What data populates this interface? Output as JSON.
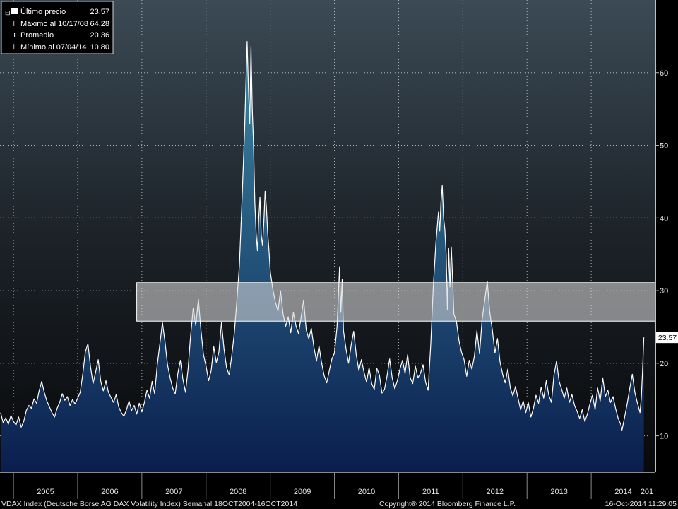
{
  "chart_data": {
    "type": "area",
    "x_ticks": [
      "2005",
      "2006",
      "2007",
      "2008",
      "2009",
      "2010",
      "2011",
      "2012",
      "2013",
      "2014",
      "201"
    ],
    "y_ticks": [
      10,
      20,
      30,
      40,
      50,
      60
    ],
    "ylim": [
      5,
      70
    ],
    "xlim": [
      2004.79,
      2015.1
    ],
    "grid": true,
    "series": [
      {
        "points": [
          [
            2004.8,
            13.2
          ],
          [
            2004.84,
            11.8
          ],
          [
            2004.88,
            12.5
          ],
          [
            2004.92,
            11.6
          ],
          [
            2004.96,
            12.8
          ],
          [
            2005.0,
            12.0
          ],
          [
            2005.04,
            11.5
          ],
          [
            2005.08,
            12.6
          ],
          [
            2005.12,
            11.2
          ],
          [
            2005.16,
            12.0
          ],
          [
            2005.2,
            13.5
          ],
          [
            2005.24,
            14.2
          ],
          [
            2005.28,
            13.8
          ],
          [
            2005.32,
            15.1
          ],
          [
            2005.36,
            14.5
          ],
          [
            2005.4,
            16.2
          ],
          [
            2005.44,
            17.5
          ],
          [
            2005.48,
            16.0
          ],
          [
            2005.52,
            14.8
          ],
          [
            2005.56,
            14.0
          ],
          [
            2005.6,
            13.2
          ],
          [
            2005.64,
            12.6
          ],
          [
            2005.68,
            13.8
          ],
          [
            2005.72,
            14.6
          ],
          [
            2005.76,
            15.8
          ],
          [
            2005.8,
            14.9
          ],
          [
            2005.84,
            15.4
          ],
          [
            2005.88,
            14.2
          ],
          [
            2005.92,
            15.0
          ],
          [
            2005.96,
            14.4
          ],
          [
            2006.0,
            15.2
          ],
          [
            2006.04,
            16.0
          ],
          [
            2006.08,
            18.5
          ],
          [
            2006.12,
            21.6
          ],
          [
            2006.16,
            22.7
          ],
          [
            2006.2,
            19.5
          ],
          [
            2006.24,
            17.2
          ],
          [
            2006.28,
            18.8
          ],
          [
            2006.32,
            20.5
          ],
          [
            2006.36,
            17.5
          ],
          [
            2006.4,
            16.2
          ],
          [
            2006.44,
            17.6
          ],
          [
            2006.48,
            16.0
          ],
          [
            2006.52,
            15.3
          ],
          [
            2006.56,
            14.6
          ],
          [
            2006.6,
            15.7
          ],
          [
            2006.64,
            14.0
          ],
          [
            2006.68,
            13.2
          ],
          [
            2006.72,
            12.7
          ],
          [
            2006.76,
            13.6
          ],
          [
            2006.8,
            14.8
          ],
          [
            2006.84,
            13.5
          ],
          [
            2006.88,
            14.2
          ],
          [
            2006.92,
            13.0
          ],
          [
            2006.96,
            14.5
          ],
          [
            2007.0,
            13.3
          ],
          [
            2007.04,
            14.6
          ],
          [
            2007.08,
            16.3
          ],
          [
            2007.12,
            15.2
          ],
          [
            2007.16,
            17.5
          ],
          [
            2007.2,
            15.8
          ],
          [
            2007.24,
            19.8
          ],
          [
            2007.28,
            22.6
          ],
          [
            2007.32,
            25.6
          ],
          [
            2007.36,
            23.0
          ],
          [
            2007.4,
            19.8
          ],
          [
            2007.44,
            18.0
          ],
          [
            2007.48,
            16.6
          ],
          [
            2007.52,
            15.8
          ],
          [
            2007.56,
            18.6
          ],
          [
            2007.6,
            20.4
          ],
          [
            2007.64,
            17.8
          ],
          [
            2007.68,
            16.0
          ],
          [
            2007.72,
            19.2
          ],
          [
            2007.76,
            23.8
          ],
          [
            2007.8,
            27.6
          ],
          [
            2007.84,
            25.2
          ],
          [
            2007.88,
            28.8
          ],
          [
            2007.92,
            24.6
          ],
          [
            2007.96,
            21.2
          ],
          [
            2008.0,
            19.6
          ],
          [
            2008.04,
            17.6
          ],
          [
            2008.08,
            19.0
          ],
          [
            2008.12,
            22.3
          ],
          [
            2008.16,
            20.1
          ],
          [
            2008.2,
            21.5
          ],
          [
            2008.24,
            25.6
          ],
          [
            2008.28,
            22.0
          ],
          [
            2008.32,
            19.4
          ],
          [
            2008.36,
            18.4
          ],
          [
            2008.4,
            21.0
          ],
          [
            2008.44,
            24.2
          ],
          [
            2008.48,
            28.6
          ],
          [
            2008.52,
            33.5
          ],
          [
            2008.56,
            42.5
          ],
          [
            2008.6,
            52.0
          ],
          [
            2008.64,
            64.3
          ],
          [
            2008.66,
            58.0
          ],
          [
            2008.68,
            53.0
          ],
          [
            2008.7,
            63.6
          ],
          [
            2008.72,
            55.0
          ],
          [
            2008.74,
            50.0
          ],
          [
            2008.76,
            42.2
          ],
          [
            2008.78,
            37.8
          ],
          [
            2008.8,
            35.5
          ],
          [
            2008.82,
            39.8
          ],
          [
            2008.84,
            42.9
          ],
          [
            2008.86,
            37.6
          ],
          [
            2008.88,
            36.2
          ],
          [
            2008.9,
            39.5
          ],
          [
            2008.92,
            43.7
          ],
          [
            2008.94,
            41.5
          ],
          [
            2008.96,
            38.0
          ],
          [
            2008.98,
            35.6
          ],
          [
            2009.0,
            32.6
          ],
          [
            2009.04,
            30.2
          ],
          [
            2009.08,
            28.4
          ],
          [
            2009.12,
            27.2
          ],
          [
            2009.16,
            30.0
          ],
          [
            2009.2,
            26.8
          ],
          [
            2009.24,
            25.1
          ],
          [
            2009.28,
            26.4
          ],
          [
            2009.32,
            24.2
          ],
          [
            2009.36,
            27.0
          ],
          [
            2009.4,
            25.2
          ],
          [
            2009.44,
            24.1
          ],
          [
            2009.48,
            26.3
          ],
          [
            2009.52,
            28.7
          ],
          [
            2009.56,
            24.6
          ],
          [
            2009.6,
            23.4
          ],
          [
            2009.64,
            24.8
          ],
          [
            2009.68,
            22.2
          ],
          [
            2009.72,
            20.3
          ],
          [
            2009.76,
            22.4
          ],
          [
            2009.8,
            20.0
          ],
          [
            2009.84,
            18.3
          ],
          [
            2009.88,
            17.3
          ],
          [
            2009.92,
            19.0
          ],
          [
            2009.96,
            20.6
          ],
          [
            2010.0,
            21.4
          ],
          [
            2010.04,
            25.0
          ],
          [
            2010.08,
            33.3
          ],
          [
            2010.1,
            27.0
          ],
          [
            2010.12,
            31.6
          ],
          [
            2010.14,
            24.5
          ],
          [
            2010.18,
            22.0
          ],
          [
            2010.22,
            20.0
          ],
          [
            2010.26,
            22.5
          ],
          [
            2010.3,
            24.4
          ],
          [
            2010.34,
            21.2
          ],
          [
            2010.38,
            19.0
          ],
          [
            2010.42,
            20.5
          ],
          [
            2010.46,
            18.8
          ],
          [
            2010.5,
            17.4
          ],
          [
            2010.54,
            19.4
          ],
          [
            2010.58,
            17.2
          ],
          [
            2010.62,
            16.4
          ],
          [
            2010.66,
            19.3
          ],
          [
            2010.7,
            18.4
          ],
          [
            2010.74,
            15.9
          ],
          [
            2010.78,
            16.4
          ],
          [
            2010.82,
            18.3
          ],
          [
            2010.86,
            20.6
          ],
          [
            2010.9,
            18.0
          ],
          [
            2010.94,
            16.5
          ],
          [
            2010.98,
            17.6
          ],
          [
            2011.02,
            19.2
          ],
          [
            2011.06,
            20.4
          ],
          [
            2011.1,
            18.6
          ],
          [
            2011.14,
            21.2
          ],
          [
            2011.18,
            18.0
          ],
          [
            2011.22,
            17.2
          ],
          [
            2011.26,
            19.6
          ],
          [
            2011.3,
            18.0
          ],
          [
            2011.34,
            18.6
          ],
          [
            2011.38,
            19.8
          ],
          [
            2011.42,
            17.4
          ],
          [
            2011.46,
            16.3
          ],
          [
            2011.5,
            22.6
          ],
          [
            2011.54,
            30.5
          ],
          [
            2011.58,
            36.6
          ],
          [
            2011.62,
            40.8
          ],
          [
            2011.64,
            38.2
          ],
          [
            2011.66,
            42.2
          ],
          [
            2011.68,
            44.5
          ],
          [
            2011.7,
            40.0
          ],
          [
            2011.72,
            38.4
          ],
          [
            2011.74,
            35.0
          ],
          [
            2011.76,
            27.4
          ],
          [
            2011.78,
            35.8
          ],
          [
            2011.8,
            30.5
          ],
          [
            2011.82,
            36.0
          ],
          [
            2011.84,
            31.8
          ],
          [
            2011.86,
            26.8
          ],
          [
            2011.9,
            25.8
          ],
          [
            2011.94,
            23.1
          ],
          [
            2011.98,
            21.5
          ],
          [
            2012.02,
            20.5
          ],
          [
            2012.06,
            18.2
          ],
          [
            2012.1,
            20.4
          ],
          [
            2012.14,
            19.2
          ],
          [
            2012.18,
            21.0
          ],
          [
            2012.22,
            24.5
          ],
          [
            2012.26,
            21.3
          ],
          [
            2012.3,
            26.0
          ],
          [
            2012.34,
            28.6
          ],
          [
            2012.38,
            31.3
          ],
          [
            2012.42,
            27.0
          ],
          [
            2012.46,
            24.6
          ],
          [
            2012.5,
            21.4
          ],
          [
            2012.54,
            23.4
          ],
          [
            2012.58,
            20.2
          ],
          [
            2012.62,
            18.5
          ],
          [
            2012.66,
            17.3
          ],
          [
            2012.7,
            19.2
          ],
          [
            2012.74,
            16.6
          ],
          [
            2012.78,
            15.5
          ],
          [
            2012.82,
            16.8
          ],
          [
            2012.86,
            15.2
          ],
          [
            2012.9,
            13.6
          ],
          [
            2012.94,
            14.8
          ],
          [
            2012.98,
            13.2
          ],
          [
            2013.02,
            14.6
          ],
          [
            2013.06,
            12.6
          ],
          [
            2013.1,
            13.8
          ],
          [
            2013.14,
            15.6
          ],
          [
            2013.18,
            14.5
          ],
          [
            2013.22,
            16.7
          ],
          [
            2013.26,
            15.2
          ],
          [
            2013.3,
            17.6
          ],
          [
            2013.34,
            15.6
          ],
          [
            2013.38,
            14.6
          ],
          [
            2013.42,
            18.4
          ],
          [
            2013.46,
            20.3
          ],
          [
            2013.5,
            17.5
          ],
          [
            2013.54,
            16.4
          ],
          [
            2013.58,
            15.2
          ],
          [
            2013.62,
            16.6
          ],
          [
            2013.66,
            14.6
          ],
          [
            2013.7,
            15.7
          ],
          [
            2013.74,
            14.2
          ],
          [
            2013.78,
            13.4
          ],
          [
            2013.82,
            12.4
          ],
          [
            2013.86,
            13.6
          ],
          [
            2013.9,
            12.0
          ],
          [
            2013.94,
            13.0
          ],
          [
            2013.98,
            14.4
          ],
          [
            2014.02,
            15.6
          ],
          [
            2014.06,
            13.6
          ],
          [
            2014.1,
            16.6
          ],
          [
            2014.14,
            14.8
          ],
          [
            2014.18,
            18.0
          ],
          [
            2014.22,
            15.4
          ],
          [
            2014.26,
            16.3
          ],
          [
            2014.3,
            14.6
          ],
          [
            2014.34,
            15.4
          ],
          [
            2014.38,
            13.8
          ],
          [
            2014.42,
            12.4
          ],
          [
            2014.46,
            11.6
          ],
          [
            2014.48,
            10.8
          ],
          [
            2014.52,
            12.6
          ],
          [
            2014.56,
            14.4
          ],
          [
            2014.6,
            16.5
          ],
          [
            2014.64,
            18.5
          ],
          [
            2014.68,
            16.0
          ],
          [
            2014.72,
            14.5
          ],
          [
            2014.76,
            13.2
          ],
          [
            2014.78,
            15.2
          ],
          [
            2014.8,
            19.0
          ],
          [
            2014.82,
            23.57
          ]
        ]
      }
    ]
  },
  "legend": {
    "items": [
      {
        "label": "Último precio",
        "value": "23.57"
      },
      {
        "label": "Máximo al 10/17/08",
        "value": "64.28"
      },
      {
        "label": "Promedio",
        "value": "20.36"
      },
      {
        "label": "Mínimo al 07/04/14",
        "value": "10.80"
      }
    ]
  },
  "last_value_label": "23.57",
  "highlight_band": {
    "y_min": 25.8,
    "y_max": 31.1,
    "x_start": 2006.92,
    "x_end": 2015.0
  },
  "footer": {
    "left": "VDAX Index (Deutsche Borse AG DAX Volatility Index)  Semanal 18OCT2004-16OCT2014",
    "center": "Copyright® 2014 Bloomberg Finance L.P.",
    "right": "16-Oct-2014 11:29:05"
  },
  "colors": {
    "line": "#ffffff",
    "fill_top": "#3d8aa7",
    "fill_bottom": "#0a1e4e",
    "band": "#d8d8d8",
    "grid": "#e0e0e0"
  }
}
